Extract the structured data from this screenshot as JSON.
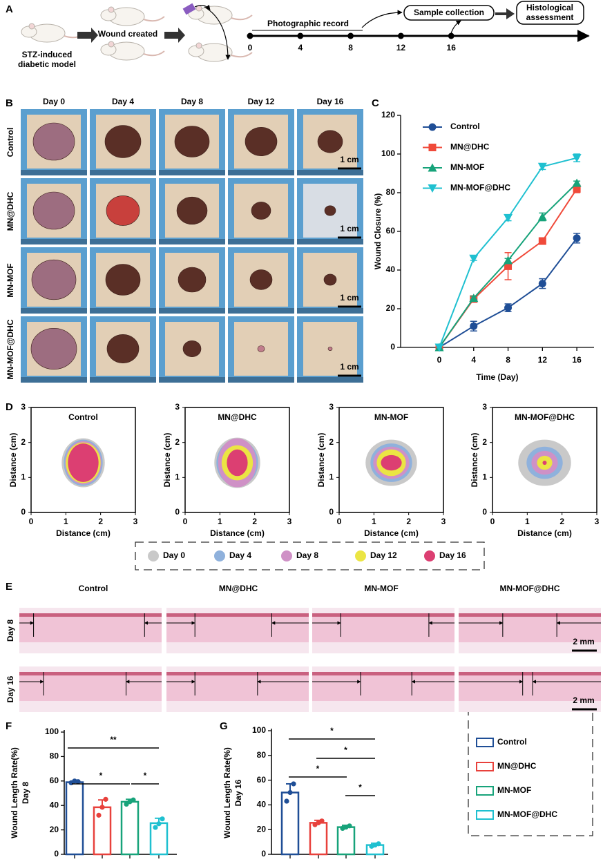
{
  "panel_labels": [
    "A",
    "B",
    "C",
    "D",
    "E",
    "F",
    "G"
  ],
  "panel_a": {
    "model_label": [
      "STZ-induced",
      "diabetic model"
    ],
    "wound_label": "Wound created",
    "record_label": "Photographic record",
    "sample_label": "Sample collection",
    "histo_label": [
      "Histological",
      "assessment"
    ],
    "timeline": [
      0,
      4,
      8,
      12,
      16
    ]
  },
  "panel_b": {
    "columns": [
      "Day 0",
      "Day 4",
      "Day 8",
      "Day 12",
      "Day 16"
    ],
    "rows": [
      "Control",
      "MN@DHC",
      "MN-MOF",
      "MN-MOF@DHC"
    ],
    "scale": "1 cm"
  },
  "panel_d": {
    "titles": [
      "Control",
      "MN@DHC",
      "MN-MOF",
      "MN-MOF@DHC"
    ],
    "xlabel": "Distance (cm)",
    "ylabel": "Distance (cm)",
    "ticks": [
      0,
      1,
      2,
      3
    ],
    "legend": [
      {
        "name": "Day 0",
        "color": "#c9c9c9"
      },
      {
        "name": "Day 4",
        "color": "#8fb1dc"
      },
      {
        "name": "Day 8",
        "color": "#cf91c6"
      },
      {
        "name": "Day 12",
        "color": "#ebe544"
      },
      {
        "name": "Day 16",
        "color": "#dc3f72"
      }
    ]
  },
  "panel_e": {
    "columns": [
      "Control",
      "MN@DHC",
      "MN-MOF",
      "MN-MOF@DHC"
    ],
    "rows": [
      "Day 8",
      "Day 16"
    ],
    "scale": "2 mm"
  },
  "legend_fg": {
    "names": [
      "Control",
      "MN@DHC",
      "MN-MOF",
      "MN-MOF@DHC"
    ],
    "colors": [
      "#1f4e96",
      "#e8413c",
      "#17a37a",
      "#1fc0d0"
    ]
  },
  "chart_data": [
    {
      "type": "line",
      "x": [
        0,
        4,
        8,
        12,
        16
      ],
      "xlim": [
        -4.5,
        18
      ],
      "xticks": [
        0,
        4,
        8,
        12,
        16
      ],
      "ylim": [
        0,
        120
      ],
      "yticks": [
        0,
        20,
        40,
        60,
        80,
        100,
        120
      ],
      "xlabel": "Time (Day)",
      "ylabel": "Wound Closure (%)",
      "legend": "upper left",
      "series": [
        {
          "name": "Control",
          "color": "#1f4e96",
          "marker": "circle",
          "values": [
            0,
            11,
            20.5,
            33,
            56.5
          ],
          "errors": [
            0,
            2.5,
            2,
            2.5,
            2.5
          ]
        },
        {
          "name": "MN@DHC",
          "color": "#f04a3a",
          "marker": "square",
          "values": [
            0,
            25,
            42,
            55,
            82
          ],
          "errors": [
            0,
            1,
            7,
            1.5,
            2
          ]
        },
        {
          "name": "MN-MOF",
          "color": "#17a37a",
          "marker": "triangle-up",
          "values": [
            0,
            25.5,
            45,
            67.5,
            85
          ],
          "errors": [
            0,
            1,
            1,
            2,
            1
          ]
        },
        {
          "name": "MN-MOF@DHC",
          "color": "#1fc0d0",
          "marker": "triangle-down",
          "values": [
            0,
            46,
            67,
            93.5,
            98
          ],
          "errors": [
            0,
            1,
            1.5,
            1.5,
            2
          ]
        }
      ]
    },
    {
      "type": "bar",
      "categories": [
        null,
        null,
        null,
        null
      ],
      "values": [
        59,
        38.5,
        43,
        25.5
      ],
      "errors": [
        1,
        6,
        2,
        4
      ],
      "points": [
        [
          58.5,
          60,
          59.5
        ],
        [
          32,
          38.5,
          45
        ],
        [
          41,
          43,
          44.5
        ],
        [
          22,
          25,
          29
        ]
      ],
      "colors": [
        "#1f4e96",
        "#e8413c",
        "#17a37a",
        "#1fc0d0"
      ],
      "ylabel": "Wound Length Rate(%)",
      "ylabel2": "Day 8",
      "ylim": [
        0,
        100
      ],
      "yticks": [
        0,
        20,
        40,
        60,
        80,
        100
      ],
      "annotations": [
        "**",
        "*",
        "*"
      ]
    },
    {
      "type": "bar",
      "categories": [
        null,
        null,
        null,
        null
      ],
      "values": [
        50,
        25.5,
        22,
        7.5
      ],
      "errors": [
        7,
        2,
        1.5,
        1.5
      ],
      "points": [
        [
          43,
          50,
          57
        ],
        [
          24,
          25.5,
          27
        ],
        [
          21,
          22,
          23
        ],
        [
          6.5,
          7.5,
          8.5
        ]
      ],
      "colors": [
        "#1f4e96",
        "#e8413c",
        "#17a37a",
        "#1fc0d0"
      ],
      "ylabel": "Wound Length Rate(%)",
      "ylabel2": "Day 16",
      "ylim": [
        0,
        100
      ],
      "yticks": [
        0,
        20,
        40,
        60,
        80,
        100
      ],
      "annotations": [
        "*",
        "*",
        "*",
        "*"
      ]
    }
  ]
}
